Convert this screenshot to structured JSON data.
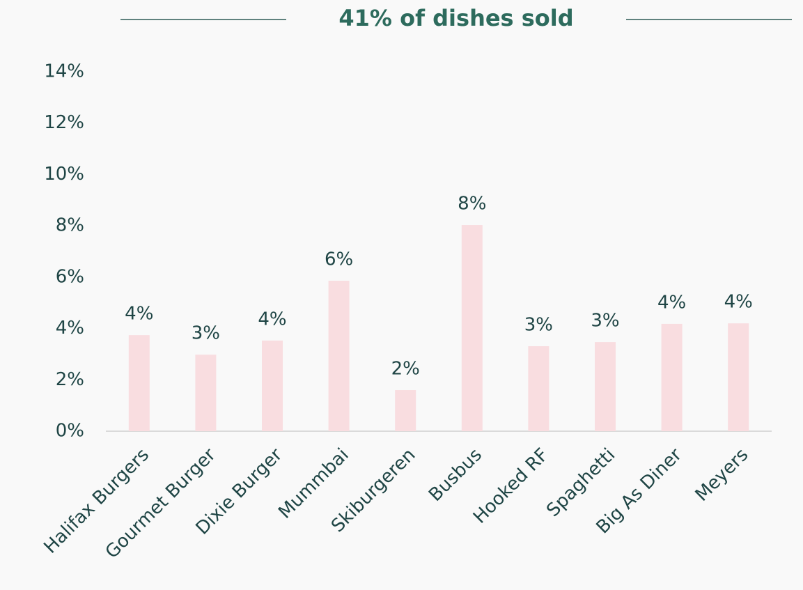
{
  "chart_data": {
    "type": "bar",
    "title": "41% of dishes sold",
    "categories": [
      "Halifax Burgers",
      "Gourmet Burger",
      "Dixie Burger",
      "Mummbai",
      "Skiburgeren",
      "Busbus",
      "Hooked RF",
      "Spaghetti",
      "Big As Diner",
      "Meyers"
    ],
    "values": [
      3.74,
      2.98,
      3.53,
      5.86,
      1.6,
      8.03,
      3.31,
      3.47,
      4.18,
      4.2
    ],
    "value_labels": [
      "4%",
      "3%",
      "4%",
      "6%",
      "2%",
      "8%",
      "3%",
      "3%",
      "4%",
      "4%"
    ],
    "color": "#f9dde0",
    "ylim": [
      0,
      14
    ],
    "yticks": [
      {
        "value": 0,
        "label": "0%"
      },
      {
        "value": 2,
        "label": "2%"
      },
      {
        "value": 4,
        "label": "4%"
      },
      {
        "value": 6,
        "label": "6%"
      },
      {
        "value": 8,
        "label": "8%"
      },
      {
        "value": 10,
        "label": "10%"
      },
      {
        "value": 12,
        "label": "12%"
      },
      {
        "value": 14,
        "label": "14%"
      }
    ],
    "grid": false
  }
}
